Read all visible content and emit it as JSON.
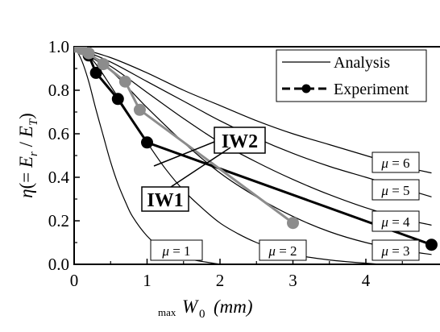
{
  "chart_data": {
    "type": "line",
    "title": "",
    "xlabel": "",
    "ylabel": "",
    "xlim": [
      0,
      4.9
    ],
    "ylim": [
      0,
      1.0
    ],
    "x_ticks": [
      0,
      1,
      2,
      3,
      4
    ],
    "y_ticks": [
      0.0,
      0.2,
      0.4,
      0.6,
      0.8,
      1.0
    ],
    "y_tick_labels": [
      "0.0",
      "0.2",
      "0.4",
      "0.6",
      "0.8",
      "1.0"
    ],
    "grid": false,
    "legend_position": "top-right",
    "legend": [
      {
        "label": "Analysis",
        "style": "thin-black-line"
      },
      {
        "label": "Experiment",
        "style": "thick-black-line-with-dots"
      }
    ],
    "ylabel_parts": {
      "eta": "η",
      "open": "(= ",
      "er": "E",
      "er_sub": "r",
      "slash": " / ",
      "et": "E",
      "et_sub": "T",
      "close": ")"
    },
    "xlabel_parts": {
      "pre": "max",
      "main": "W",
      "sub": "0",
      "unit": "(mm)"
    },
    "analysis_series": [
      {
        "mu": "μ = 1",
        "label_box": {
          "mu": "μ",
          "eq": " = 1"
        },
        "x": [
          0,
          0.1,
          0.2,
          0.3,
          0.4,
          0.5,
          0.6,
          0.7,
          0.8,
          1.0,
          1.2,
          1.5,
          2.0
        ],
        "y": [
          1.0,
          0.94,
          0.84,
          0.71,
          0.59,
          0.47,
          0.37,
          0.29,
          0.22,
          0.13,
          0.075,
          0.03,
          0.0
        ]
      },
      {
        "mu": "μ = 2",
        "label_box": {
          "mu": "μ",
          "eq": " = 2"
        },
        "x": [
          0,
          0.25,
          0.5,
          0.75,
          1.0,
          1.25,
          1.5,
          1.75,
          2.0,
          2.25,
          2.5,
          2.75,
          3.0,
          3.5,
          4.0,
          4.2
        ],
        "y": [
          1.0,
          0.94,
          0.82,
          0.69,
          0.56,
          0.44,
          0.34,
          0.26,
          0.19,
          0.14,
          0.1,
          0.07,
          0.045,
          0.02,
          0.005,
          0.0
        ]
      },
      {
        "mu": "μ = 3",
        "label_box": {
          "mu": "μ",
          "eq": " = 3"
        },
        "x": [
          0,
          0.5,
          1.0,
          1.5,
          2.0,
          2.5,
          3.0,
          3.5,
          4.0,
          4.5,
          4.9
        ],
        "y": [
          1.0,
          0.89,
          0.72,
          0.56,
          0.42,
          0.31,
          0.22,
          0.15,
          0.1,
          0.065,
          0.045
        ]
      },
      {
        "mu": "μ = 4",
        "label_box": {
          "mu": "μ",
          "eq": " = 4"
        },
        "x": [
          0,
          0.5,
          1.0,
          1.5,
          2.0,
          2.5,
          3.0,
          3.5,
          4.0,
          4.5,
          4.9
        ],
        "y": [
          1.0,
          0.91,
          0.79,
          0.67,
          0.56,
          0.47,
          0.39,
          0.32,
          0.26,
          0.21,
          0.18
        ]
      },
      {
        "mu": "μ = 5",
        "label_box": {
          "mu": "μ",
          "eq": " = 5"
        },
        "x": [
          0,
          0.5,
          1.0,
          1.5,
          2.0,
          2.5,
          3.0,
          3.5,
          4.0,
          4.5,
          4.9
        ],
        "y": [
          1.0,
          0.93,
          0.84,
          0.75,
          0.66,
          0.58,
          0.51,
          0.45,
          0.4,
          0.35,
          0.31
        ]
      },
      {
        "mu": "μ = 6",
        "label_box": {
          "mu": "μ",
          "eq": " = 6"
        },
        "x": [
          0,
          0.5,
          1.0,
          1.5,
          2.0,
          2.5,
          3.0,
          3.5,
          4.0,
          4.5,
          4.9
        ],
        "y": [
          1.0,
          0.95,
          0.88,
          0.8,
          0.73,
          0.66,
          0.6,
          0.55,
          0.5,
          0.45,
          0.42
        ]
      }
    ],
    "experiment_series": [
      {
        "name": "IW1",
        "color": "#000000",
        "x": [
          0,
          0.2,
          0.3,
          0.6,
          1.0,
          4.9
        ],
        "y": [
          1.0,
          0.96,
          0.88,
          0.76,
          0.56,
          0.09
        ]
      },
      {
        "name": "IW2",
        "color": "#8c8c8c",
        "x": [
          0,
          0.1,
          0.2,
          0.4,
          0.7,
          0.9,
          3.0
        ],
        "y": [
          1.0,
          0.99,
          0.97,
          0.92,
          0.84,
          0.71,
          0.19
        ]
      }
    ],
    "annotations": [
      "IW1",
      "IW2"
    ]
  }
}
